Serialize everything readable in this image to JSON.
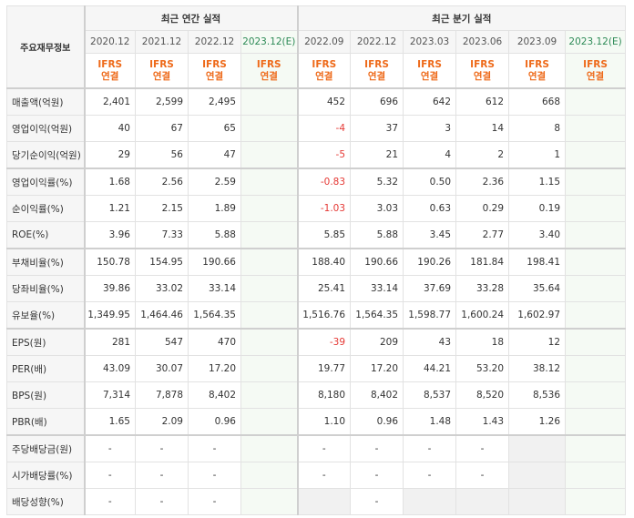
{
  "header": {
    "corner_label": "주요재무정보",
    "annual_title": "최근 연간 실적",
    "quarterly_title": "최근 분기 실적",
    "annual_periods": [
      "2020.12",
      "2021.12",
      "2022.12",
      "2023.12(E)"
    ],
    "quarterly_periods": [
      "2022.09",
      "2022.12",
      "2023.03",
      "2023.06",
      "2023.09",
      "2023.12(E)"
    ],
    "accounting_top": "IFRS",
    "accounting_bottom": "연결"
  },
  "rows": [
    {
      "label": "매출액(억원)",
      "values": [
        "2,401",
        "2,599",
        "2,495",
        "",
        "452",
        "696",
        "642",
        "612",
        "668",
        ""
      ]
    },
    {
      "label": "영업이익(억원)",
      "values": [
        "40",
        "67",
        "65",
        "",
        "-4",
        "37",
        "3",
        "14",
        "8",
        ""
      ]
    },
    {
      "label": "당기순이익(억원)",
      "values": [
        "29",
        "56",
        "47",
        "",
        "-5",
        "21",
        "4",
        "2",
        "1",
        ""
      ]
    },
    {
      "label": "영업이익률(%)",
      "values": [
        "1.68",
        "2.56",
        "2.59",
        "",
        "-0.83",
        "5.32",
        "0.50",
        "2.36",
        "1.15",
        ""
      ]
    },
    {
      "label": "순이익률(%)",
      "values": [
        "1.21",
        "2.15",
        "1.89",
        "",
        "-1.03",
        "3.03",
        "0.63",
        "0.29",
        "0.19",
        ""
      ]
    },
    {
      "label": "ROE(%)",
      "values": [
        "3.96",
        "7.33",
        "5.88",
        "",
        "5.85",
        "5.88",
        "3.45",
        "2.77",
        "3.40",
        ""
      ]
    },
    {
      "label": "부채비율(%)",
      "values": [
        "150.78",
        "154.95",
        "190.66",
        "",
        "188.40",
        "190.66",
        "190.26",
        "181.84",
        "198.41",
        ""
      ]
    },
    {
      "label": "당좌비율(%)",
      "values": [
        "39.86",
        "33.02",
        "33.14",
        "",
        "25.41",
        "33.14",
        "37.69",
        "33.28",
        "35.64",
        ""
      ]
    },
    {
      "label": "유보율(%)",
      "values": [
        "1,349.95",
        "1,464.46",
        "1,564.35",
        "",
        "1,516.76",
        "1,564.35",
        "1,598.77",
        "1,600.24",
        "1,602.97",
        ""
      ]
    },
    {
      "label": "EPS(원)",
      "values": [
        "281",
        "547",
        "470",
        "",
        "-39",
        "209",
        "43",
        "18",
        "12",
        ""
      ]
    },
    {
      "label": "PER(배)",
      "values": [
        "43.09",
        "30.07",
        "17.20",
        "",
        "19.77",
        "17.20",
        "44.21",
        "53.20",
        "38.12",
        ""
      ]
    },
    {
      "label": "BPS(원)",
      "values": [
        "7,314",
        "7,878",
        "8,402",
        "",
        "8,180",
        "8,402",
        "8,537",
        "8,520",
        "8,536",
        ""
      ]
    },
    {
      "label": "PBR(배)",
      "values": [
        "1.65",
        "2.09",
        "0.96",
        "",
        "1.10",
        "0.96",
        "1.48",
        "1.43",
        "1.26",
        ""
      ]
    },
    {
      "label": "주당배당금(원)",
      "values": [
        "-",
        "-",
        "-",
        "",
        "-",
        "-",
        "-",
        "-",
        "",
        ""
      ]
    },
    {
      "label": "시가배당률(%)",
      "values": [
        "-",
        "-",
        "-",
        "",
        "-",
        "-",
        "-",
        "-",
        "",
        ""
      ]
    },
    {
      "label": "배당성향(%)",
      "values": [
        "-",
        "-",
        "-",
        "",
        "",
        "-",
        "",
        "",
        "",
        ""
      ]
    }
  ],
  "blank_cells": [
    [
      13,
      8
    ],
    [
      14,
      8
    ],
    [
      15,
      4
    ],
    [
      15,
      6
    ],
    [
      15,
      7
    ],
    [
      15,
      8
    ]
  ],
  "colors": {
    "negative": "#e53935",
    "accounting": "#ee6a1a",
    "estimate": "#2e8b57"
  }
}
